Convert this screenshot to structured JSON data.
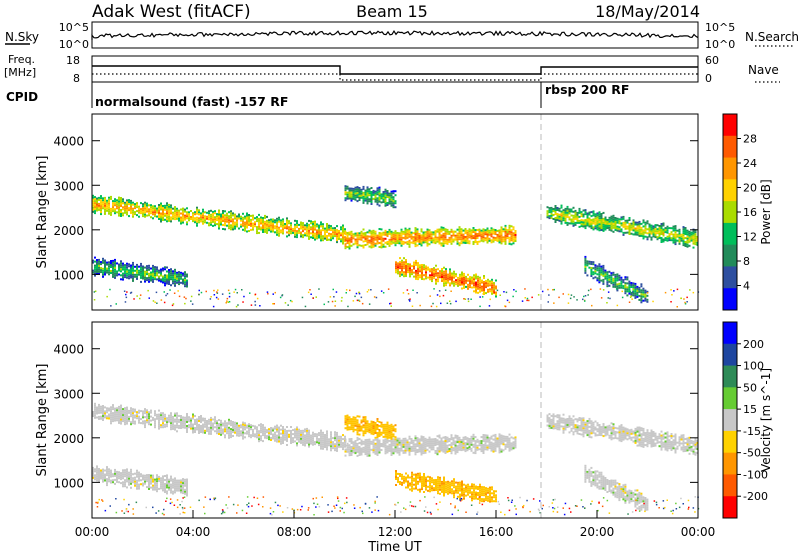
{
  "header": {
    "station": "Adak West (fitACF)",
    "beam": "Beam 15",
    "date": "18/May/2014"
  },
  "summary_panels": {
    "nsky_label": "N.Sky",
    "nsky_ticks": [
      "10^5",
      "10^0"
    ],
    "nsearch_label": "N.Search",
    "nsearch_ticks": [
      "10^5",
      "10^0"
    ],
    "freq_label_1": "Freq.",
    "freq_label_2": "[MHz]",
    "freq_ticks": [
      "18",
      "8"
    ],
    "nave_label": "Nave",
    "nave_ticks": [
      "60",
      "0"
    ],
    "cpid_label": "CPID",
    "cpid_segments": [
      "normalsound (fast) -157 RF",
      "rbsp 200 RF"
    ]
  },
  "chart_data": [
    {
      "type": "heatmap",
      "title": "",
      "xlabel": "",
      "ylabel": "Slant Range [km]",
      "xlim": [
        0,
        24
      ],
      "ylim": [
        200,
        4600
      ],
      "y_ticks": [
        "4000",
        "3000",
        "2000",
        "1000"
      ],
      "colorbar": {
        "label": "Power [dB]",
        "ticks": [
          "28",
          "24",
          "20",
          "16",
          "12",
          "8",
          "4"
        ],
        "colors": [
          "#ff0000",
          "#ff5a00",
          "#ff9600",
          "#ffd200",
          "#aadc00",
          "#00be5a",
          "#228b5a",
          "#2e4fa0",
          "#0000ff"
        ]
      },
      "echo_bands": [
        {
          "x": [
            0.0,
            10.0
          ],
          "y": [
            2600,
            1900
          ],
          "peak": 20
        },
        {
          "x": [
            10.0,
            16.8
          ],
          "y": [
            1800,
            1900
          ],
          "peak": 24
        },
        {
          "x": [
            0.0,
            3.8
          ],
          "y": [
            1200,
            900
          ],
          "peak": 8
        },
        {
          "x": [
            12.0,
            16.0
          ],
          "y": [
            1200,
            700
          ],
          "peak": 26
        },
        {
          "x": [
            10.0,
            12.0
          ],
          "y": [
            2850,
            2700
          ],
          "peak": 10
        },
        {
          "x": [
            18.0,
            24.0
          ],
          "y": [
            2400,
            1800
          ],
          "peak": 14
        },
        {
          "x": [
            19.5,
            22.0
          ],
          "y": [
            1200,
            500
          ],
          "peak": 8
        }
      ]
    },
    {
      "type": "heatmap",
      "title": "",
      "xlabel": "Time UT",
      "ylabel": "Slant Range [km]",
      "xlim": [
        0,
        24
      ],
      "ylim": [
        200,
        4600
      ],
      "x_ticks": [
        "00:00",
        "04:00",
        "08:00",
        "12:00",
        "16:00",
        "20:00",
        "00:00"
      ],
      "y_ticks": [
        "4000",
        "3000",
        "2000",
        "1000"
      ],
      "colorbar": {
        "label": "Velocity [m s^-1]",
        "ticks": [
          "200",
          "100",
          "50",
          "15",
          "-15",
          "-50",
          "-100",
          "-200"
        ],
        "colors": [
          "#0000ff",
          "#1e46a0",
          "#2e8b57",
          "#66cc33",
          "#c8c8c8",
          "#ffd200",
          "#ff9600",
          "#ff5a00",
          "#ff0000"
        ]
      },
      "echo_bands": [
        {
          "x": [
            0.0,
            10.0
          ],
          "y": [
            2600,
            1900
          ],
          "velocity": 0
        },
        {
          "x": [
            10.0,
            16.8
          ],
          "y": [
            1800,
            1900
          ],
          "velocity": 0
        },
        {
          "x": [
            0.0,
            3.8
          ],
          "y": [
            1200,
            900
          ],
          "velocity": 0
        },
        {
          "x": [
            12.0,
            16.0
          ],
          "y": [
            1100,
            700
          ],
          "velocity": -40
        },
        {
          "x": [
            10.0,
            12.0
          ],
          "y": [
            2350,
            2150
          ],
          "velocity": -40
        },
        {
          "x": [
            18.0,
            24.0
          ],
          "y": [
            2400,
            1800
          ],
          "velocity": 0
        },
        {
          "x": [
            19.5,
            22.0
          ],
          "y": [
            1200,
            500
          ],
          "velocity": -20
        }
      ]
    }
  ]
}
